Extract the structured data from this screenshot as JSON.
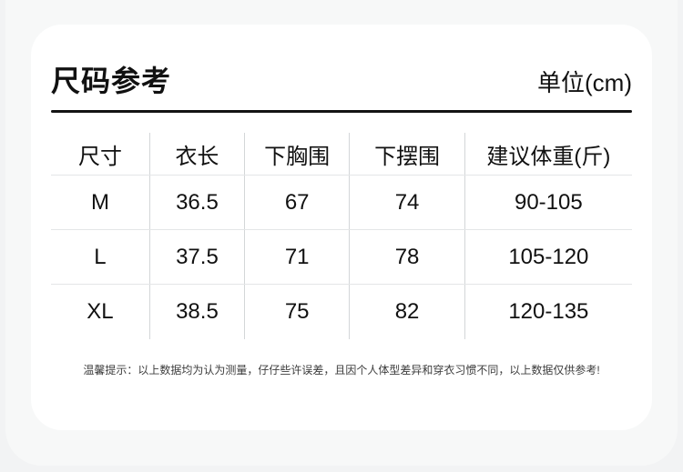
{
  "page": {
    "title": "尺码参考",
    "unit_label": "单位(cm)"
  },
  "table": {
    "headers": [
      "尺寸",
      "衣长",
      "下胸围",
      "下摆围",
      "建议体重(斤)"
    ],
    "rows": [
      [
        "M",
        "36.5",
        "67",
        "74",
        "90-105"
      ],
      [
        "L",
        "37.5",
        "71",
        "78",
        "105-120"
      ],
      [
        "XL",
        "38.5",
        "75",
        "82",
        "120-135"
      ]
    ]
  },
  "footer": {
    "note": "温馨提示：以上数据均为认为测量，仔仔些许误差，且因个人体型差异和穿衣习惯不同，以上数据仅供参考!"
  },
  "colors": {
    "page_background": "#f2f3f4",
    "panel_background": "#f7f8f8",
    "card_background": "#ffffff",
    "text_primary": "#111111",
    "divider_strong": "#141414",
    "grid_vertical": "#d3d6d8",
    "grid_horizontal": "#e4e6e7",
    "note_text": "#3c3c3c"
  }
}
